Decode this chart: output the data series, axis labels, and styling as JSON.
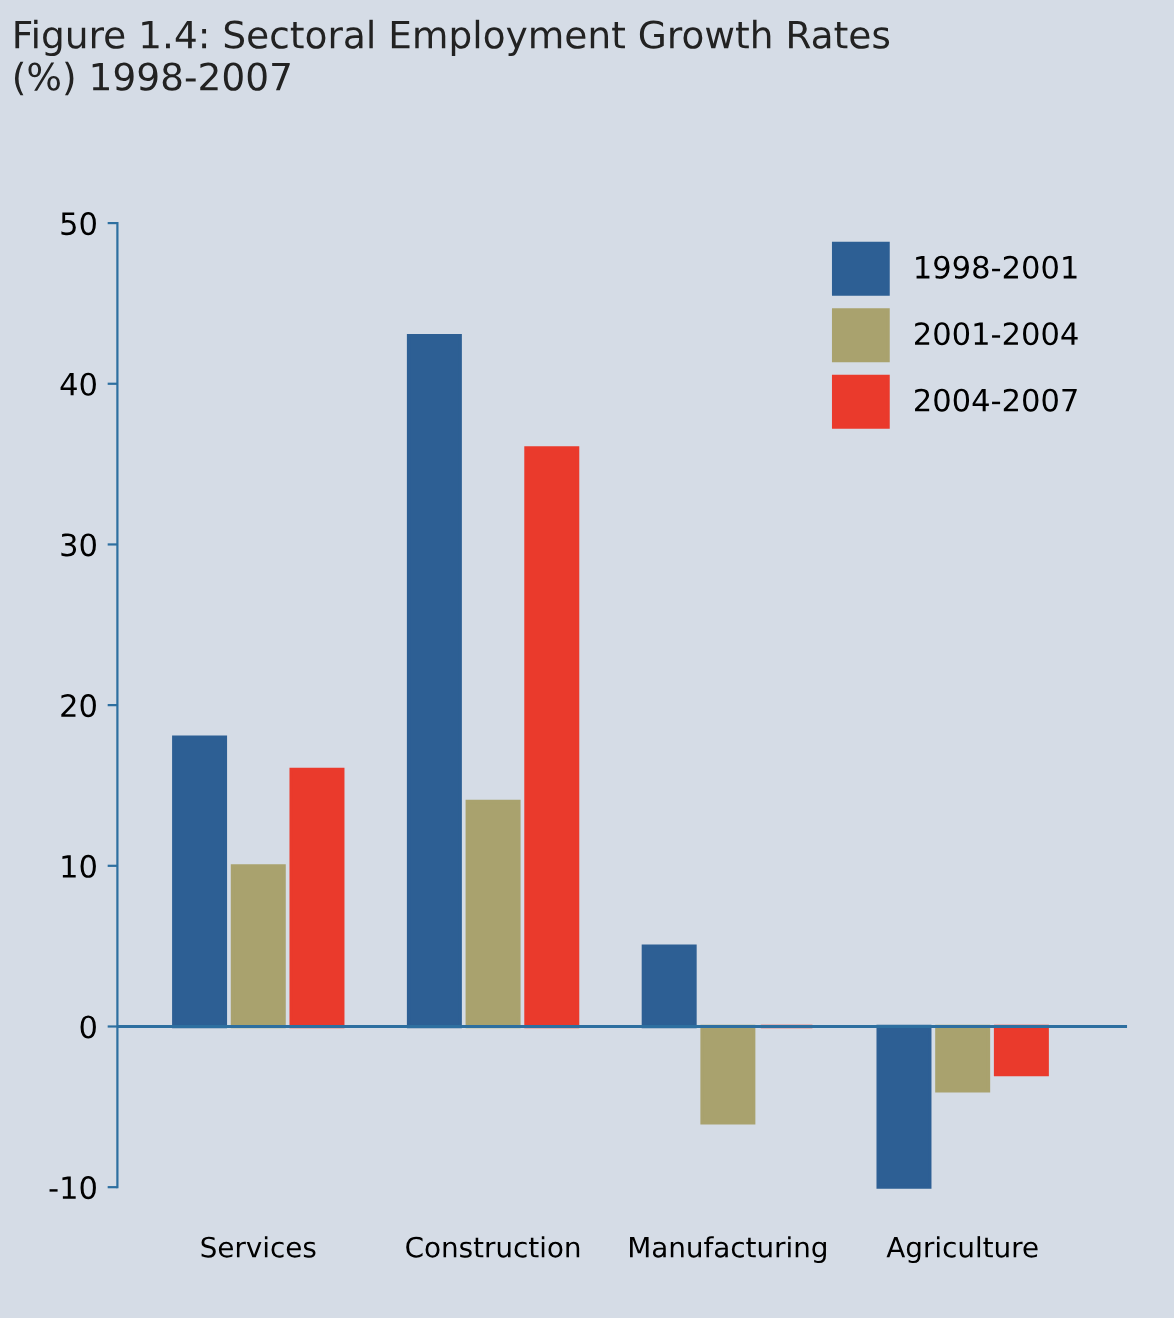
{
  "chart_data": {
    "type": "bar",
    "title": "Figure 1.4: Sectoral Employment Growth Rates\n(%) 1998-2007",
    "categories": [
      "Services",
      "Construction",
      "Manufacturing",
      "Agriculture"
    ],
    "series": [
      {
        "name": "1998-2001",
        "color": "#2d5f94",
        "values": [
          18,
          43,
          5,
          -10
        ]
      },
      {
        "name": "2001-2004",
        "color": "#a9a26e",
        "values": [
          10,
          14,
          -6,
          -4
        ]
      },
      {
        "name": "2004-2007",
        "color": "#ea3a2c",
        "values": [
          16,
          36,
          0,
          -3
        ]
      }
    ],
    "ylim": [
      -10,
      50
    ],
    "yticks": [
      -10,
      0,
      10,
      20,
      30,
      40,
      50
    ],
    "ref_lines": [
      {
        "axis": "y",
        "value": 0,
        "color": "#2d6fa0"
      }
    ],
    "grid": false,
    "legend": "top right"
  }
}
